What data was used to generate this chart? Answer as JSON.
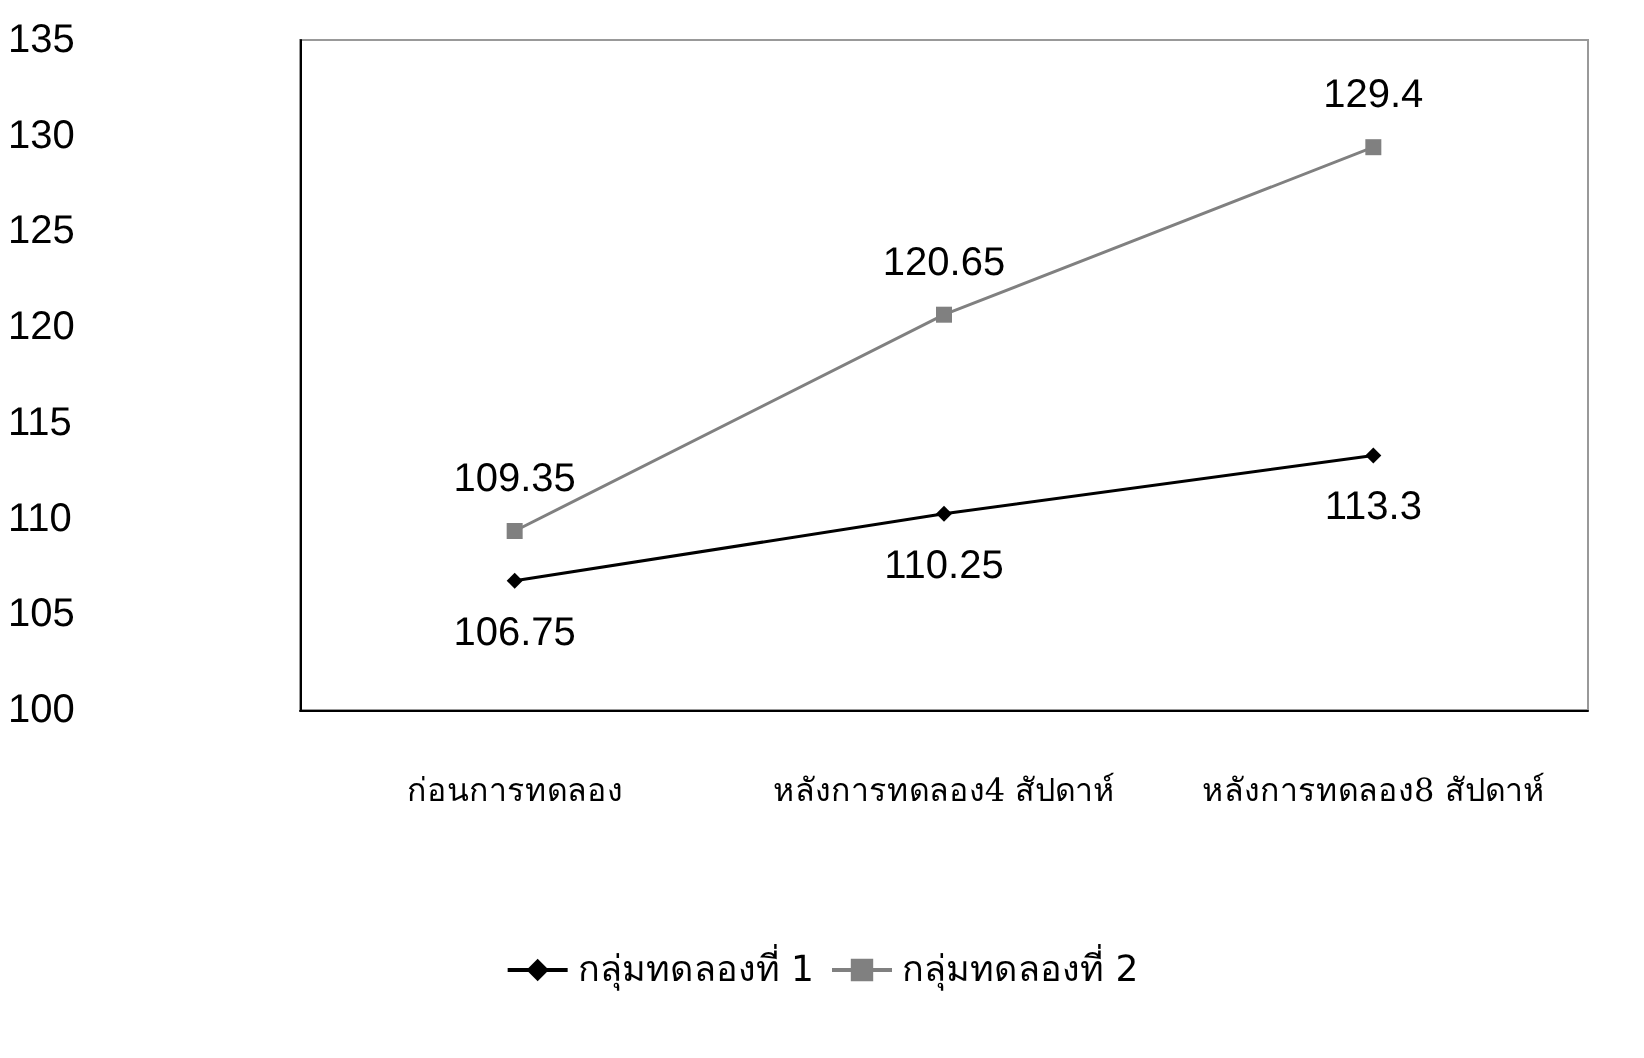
{
  "chart_data": {
    "type": "line",
    "categories": [
      "ก่อนการทดลอง",
      "หลังการทดลอง4 สัปดาห์",
      "หลังการทดลอง8 สัปดาห์"
    ],
    "series": [
      {
        "name": "กลุ่มทดลองที่ 1",
        "color": "#000000",
        "values": [
          106.75,
          110.25,
          113.3
        ],
        "marker": "diamond"
      },
      {
        "name": "กลุ่มทดลองที่ 2",
        "color": "#808080",
        "values": [
          109.35,
          120.65,
          129.4
        ],
        "marker": "square"
      }
    ],
    "ylim": [
      100,
      135
    ],
    "yticks": [
      100,
      105,
      110,
      115,
      120,
      125,
      130,
      135
    ],
    "grid": false,
    "legend": "bottom",
    "data_labels": true
  }
}
